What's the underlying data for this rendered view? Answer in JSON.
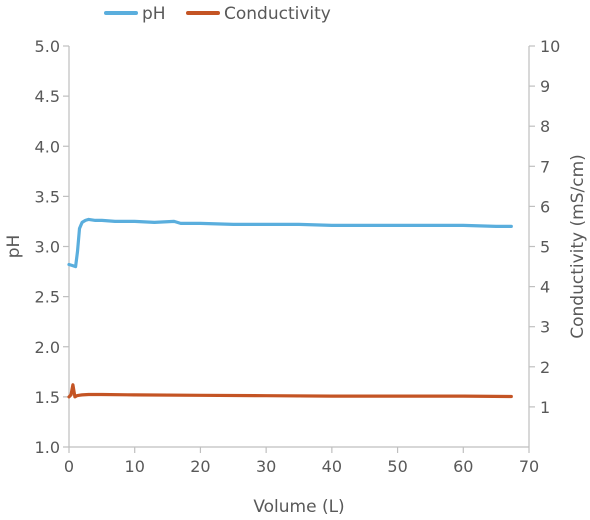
{
  "chart_data": {
    "type": "line",
    "title": "",
    "xlabel": "Volume (L)",
    "ylabel_left": "pH",
    "ylabel_right": "Conductivity (mS/cm)",
    "xlim": [
      0,
      70
    ],
    "ylim_left": [
      1.0,
      5.0
    ],
    "ylim_right": [
      0,
      10
    ],
    "x_ticks": [
      0,
      10,
      20,
      30,
      40,
      50,
      60,
      70
    ],
    "x_tick_labels": [
      "0",
      "10",
      "20",
      "30",
      "40",
      "50",
      "60",
      "70"
    ],
    "y_left_ticks": [
      1.0,
      1.5,
      2.0,
      2.5,
      3.0,
      3.5,
      4.0,
      4.5,
      5.0
    ],
    "y_left_tick_labels": [
      "1.0",
      "1.5",
      "2.0",
      "2.5",
      "3.0",
      "3.5",
      "4.0",
      "4.5",
      "5.0"
    ],
    "y_right_ticks": [
      1,
      2,
      3,
      4,
      5,
      6,
      7,
      8,
      9,
      10
    ],
    "y_right_tick_labels": [
      "1",
      "2",
      "3",
      "4",
      "5",
      "6",
      "7",
      "8",
      "9",
      "10"
    ],
    "grid": false,
    "legend_position": "top-left",
    "series": [
      {
        "name": "pH",
        "axis": "left",
        "color": "#5aaedd",
        "x": [
          0,
          0.5,
          1.0,
          1.3,
          1.6,
          2.0,
          2.5,
          3.0,
          4,
          5,
          7,
          10,
          13,
          16,
          17,
          20,
          25,
          30,
          35,
          40,
          45,
          50,
          55,
          60,
          65,
          67.3
        ],
        "y": [
          2.82,
          2.81,
          2.8,
          2.95,
          3.18,
          3.24,
          3.26,
          3.27,
          3.26,
          3.26,
          3.25,
          3.25,
          3.24,
          3.25,
          3.23,
          3.23,
          3.22,
          3.22,
          3.22,
          3.21,
          3.21,
          3.21,
          3.21,
          3.21,
          3.2,
          3.2
        ]
      },
      {
        "name": "Conductivity",
        "axis": "right",
        "color": "#c45424",
        "x": [
          0,
          0.3,
          0.6,
          0.9,
          1.2,
          1.5,
          2.0,
          3,
          5,
          10,
          20,
          30,
          40,
          50,
          60,
          67.3
        ],
        "y": [
          1.25,
          1.3,
          1.55,
          1.25,
          1.28,
          1.29,
          1.3,
          1.31,
          1.31,
          1.3,
          1.29,
          1.28,
          1.27,
          1.27,
          1.27,
          1.26
        ]
      }
    ]
  }
}
